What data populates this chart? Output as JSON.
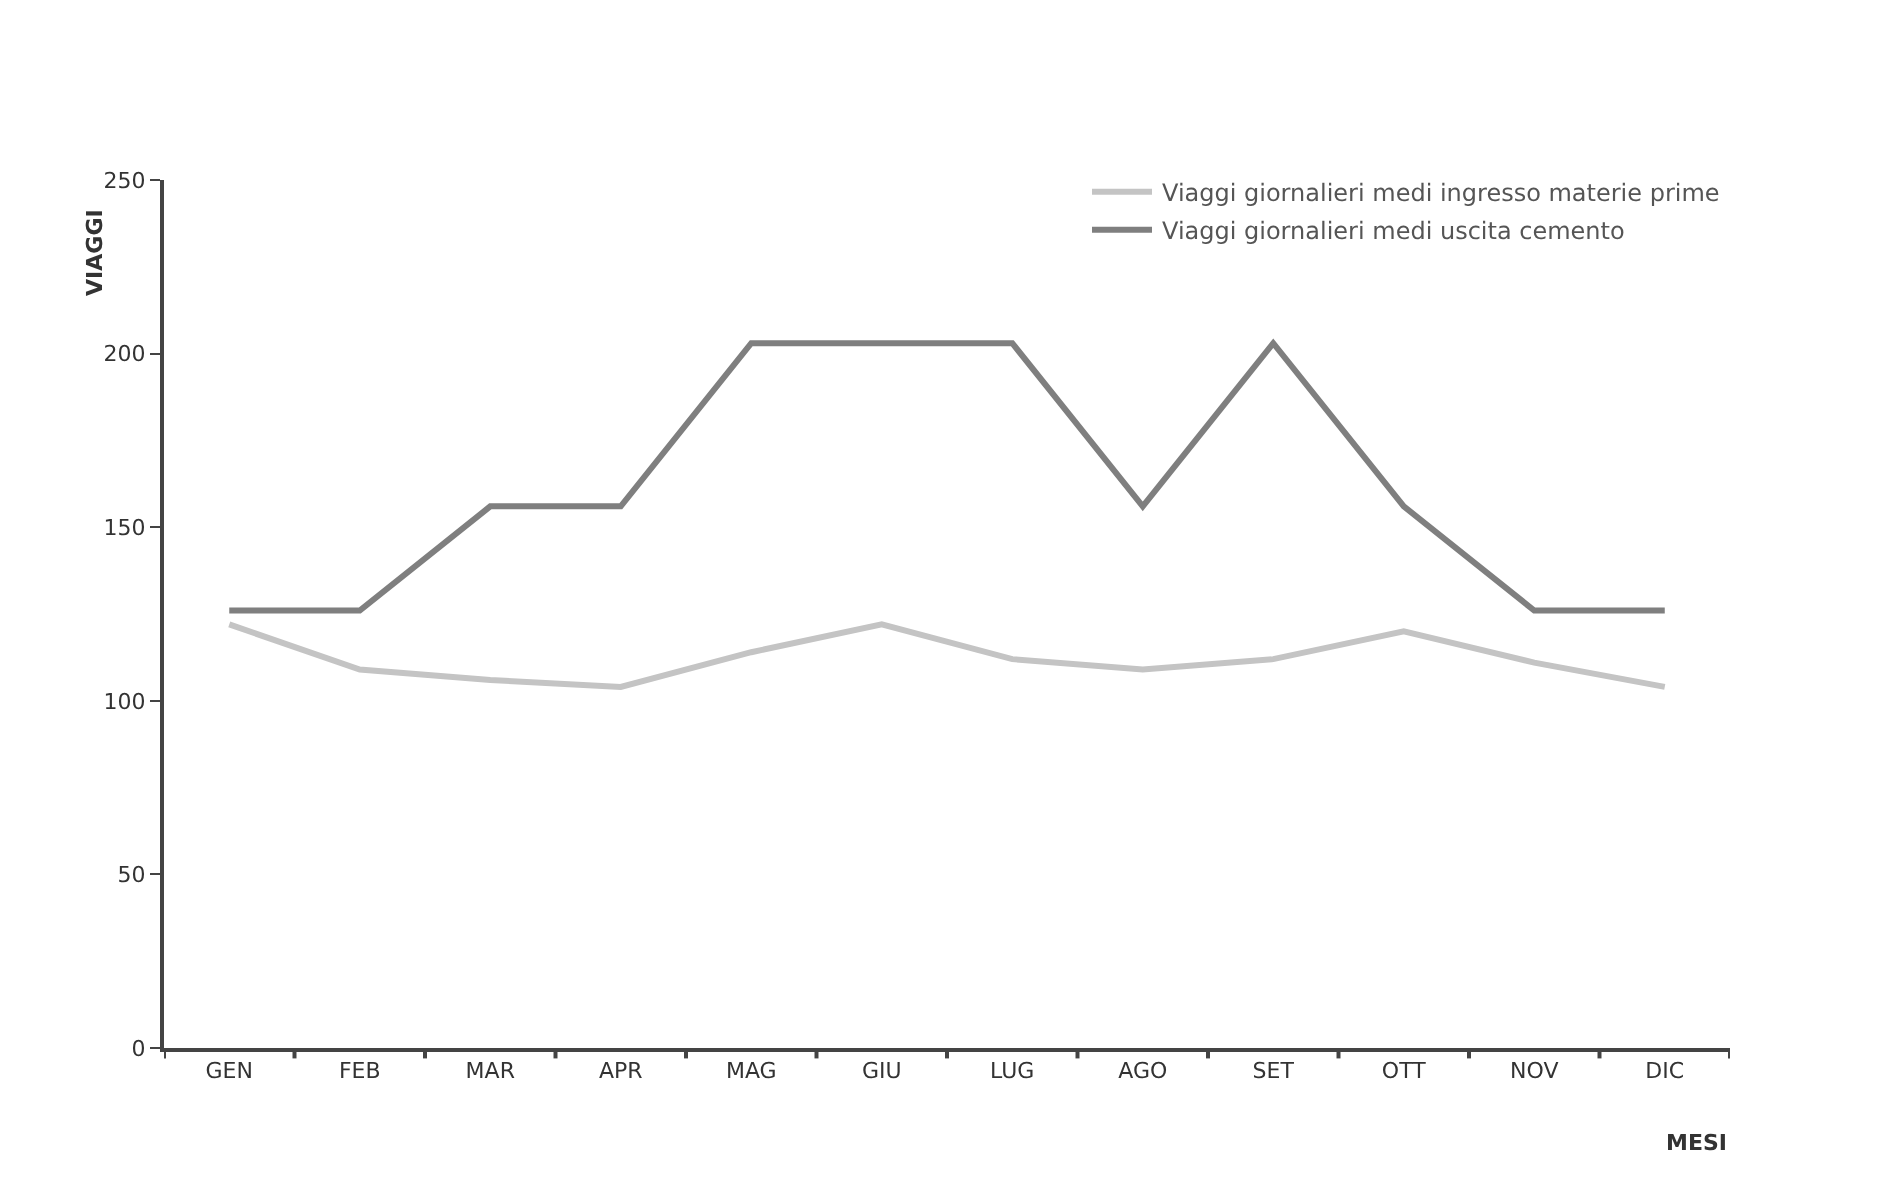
{
  "chart_data": {
    "type": "line",
    "xlabel": "MESI",
    "ylabel": "VIAGGI",
    "categories": [
      "GEN",
      "FEB",
      "MAR",
      "APR",
      "MAG",
      "GIU",
      "LUG",
      "AGO",
      "SET",
      "OTT",
      "NOV",
      "DIC"
    ],
    "series": [
      {
        "name": "Viaggi giornalieri medi ingresso materie prime",
        "color": "#c4c4c4",
        "values": [
          122,
          109,
          106,
          104,
          114,
          122,
          112,
          109,
          112,
          120,
          111,
          104
        ]
      },
      {
        "name": "Viaggi giornalieri medi uscita cemento",
        "color": "#7f7f7f",
        "values": [
          126,
          126,
          156,
          156,
          203,
          203,
          203,
          156,
          203,
          156,
          126,
          126
        ]
      }
    ],
    "ylim": [
      0,
      250
    ],
    "yticks": [
      0,
      50,
      100,
      150,
      200,
      250
    ],
    "grid": false,
    "legend": "top right",
    "marker": "none",
    "line_style": "solid"
  }
}
